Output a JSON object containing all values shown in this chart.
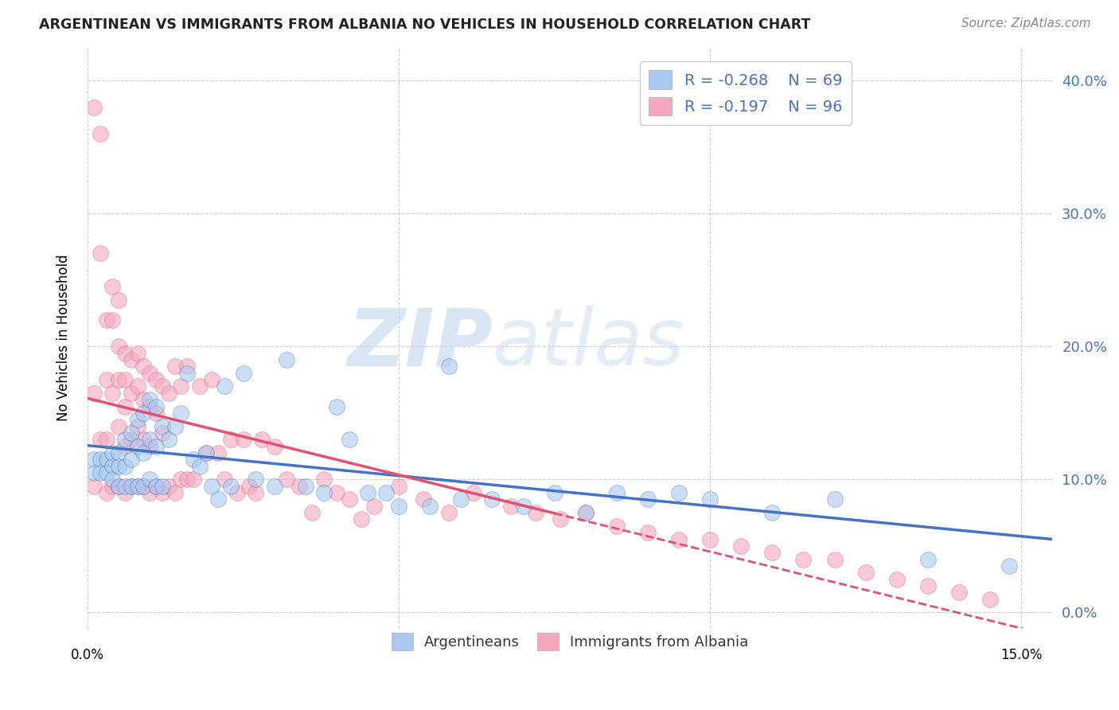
{
  "title": "ARGENTINEAN VS IMMIGRANTS FROM ALBANIA NO VEHICLES IN HOUSEHOLD CORRELATION CHART",
  "source": "Source: ZipAtlas.com",
  "ylabel": "No Vehicles in Household",
  "yticks": [
    0.0,
    0.1,
    0.2,
    0.3,
    0.4
  ],
  "xlim": [
    0.0,
    0.155
  ],
  "ylim": [
    -0.012,
    0.425
  ],
  "legend_r1": "-0.268",
  "legend_n1": "69",
  "legend_r2": "-0.197",
  "legend_n2": "96",
  "color_blue": "#A8C8F0",
  "color_pink": "#F5A8BC",
  "color_trend_blue": "#4472C4",
  "color_trend_pink": "#E05070",
  "watermark": "ZIPatlas",
  "argentineans_x": [
    0.001,
    0.001,
    0.002,
    0.002,
    0.003,
    0.003,
    0.004,
    0.004,
    0.004,
    0.005,
    0.005,
    0.005,
    0.006,
    0.006,
    0.006,
    0.007,
    0.007,
    0.007,
    0.008,
    0.008,
    0.008,
    0.009,
    0.009,
    0.009,
    0.01,
    0.01,
    0.01,
    0.011,
    0.011,
    0.011,
    0.012,
    0.012,
    0.013,
    0.014,
    0.015,
    0.016,
    0.017,
    0.018,
    0.019,
    0.02,
    0.021,
    0.022,
    0.023,
    0.025,
    0.027,
    0.03,
    0.032,
    0.035,
    0.038,
    0.04,
    0.042,
    0.045,
    0.048,
    0.05,
    0.055,
    0.058,
    0.06,
    0.065,
    0.07,
    0.075,
    0.08,
    0.085,
    0.09,
    0.095,
    0.1,
    0.11,
    0.12,
    0.135,
    0.148
  ],
  "argentineans_y": [
    0.115,
    0.105,
    0.115,
    0.105,
    0.115,
    0.105,
    0.12,
    0.11,
    0.1,
    0.12,
    0.11,
    0.095,
    0.13,
    0.11,
    0.095,
    0.135,
    0.115,
    0.095,
    0.145,
    0.125,
    0.095,
    0.15,
    0.12,
    0.095,
    0.16,
    0.13,
    0.1,
    0.155,
    0.125,
    0.095,
    0.14,
    0.095,
    0.13,
    0.14,
    0.15,
    0.18,
    0.115,
    0.11,
    0.12,
    0.095,
    0.085,
    0.17,
    0.095,
    0.18,
    0.1,
    0.095,
    0.19,
    0.095,
    0.09,
    0.155,
    0.13,
    0.09,
    0.09,
    0.08,
    0.08,
    0.185,
    0.085,
    0.085,
    0.08,
    0.09,
    0.075,
    0.09,
    0.085,
    0.09,
    0.085,
    0.075,
    0.085,
    0.04,
    0.035
  ],
  "albania_x": [
    0.001,
    0.001,
    0.001,
    0.002,
    0.002,
    0.002,
    0.003,
    0.003,
    0.003,
    0.003,
    0.004,
    0.004,
    0.004,
    0.004,
    0.005,
    0.005,
    0.005,
    0.005,
    0.005,
    0.006,
    0.006,
    0.006,
    0.006,
    0.006,
    0.007,
    0.007,
    0.007,
    0.007,
    0.008,
    0.008,
    0.008,
    0.008,
    0.009,
    0.009,
    0.009,
    0.009,
    0.01,
    0.01,
    0.01,
    0.01,
    0.011,
    0.011,
    0.011,
    0.012,
    0.012,
    0.012,
    0.013,
    0.013,
    0.014,
    0.014,
    0.015,
    0.015,
    0.016,
    0.016,
    0.017,
    0.018,
    0.019,
    0.02,
    0.021,
    0.022,
    0.023,
    0.024,
    0.025,
    0.026,
    0.027,
    0.028,
    0.03,
    0.032,
    0.034,
    0.036,
    0.038,
    0.04,
    0.042,
    0.044,
    0.046,
    0.05,
    0.054,
    0.058,
    0.062,
    0.068,
    0.072,
    0.076,
    0.08,
    0.085,
    0.09,
    0.095,
    0.1,
    0.105,
    0.11,
    0.115,
    0.12,
    0.125,
    0.13,
    0.135,
    0.14,
    0.145
  ],
  "albania_y": [
    0.38,
    0.165,
    0.095,
    0.36,
    0.27,
    0.13,
    0.22,
    0.175,
    0.13,
    0.09,
    0.245,
    0.22,
    0.165,
    0.095,
    0.235,
    0.2,
    0.175,
    0.14,
    0.095,
    0.195,
    0.175,
    0.155,
    0.125,
    0.09,
    0.19,
    0.165,
    0.13,
    0.095,
    0.195,
    0.17,
    0.14,
    0.095,
    0.185,
    0.16,
    0.13,
    0.095,
    0.18,
    0.155,
    0.125,
    0.09,
    0.175,
    0.15,
    0.095,
    0.17,
    0.135,
    0.09,
    0.165,
    0.095,
    0.185,
    0.09,
    0.17,
    0.1,
    0.185,
    0.1,
    0.1,
    0.17,
    0.12,
    0.175,
    0.12,
    0.1,
    0.13,
    0.09,
    0.13,
    0.095,
    0.09,
    0.13,
    0.125,
    0.1,
    0.095,
    0.075,
    0.1,
    0.09,
    0.085,
    0.07,
    0.08,
    0.095,
    0.085,
    0.075,
    0.09,
    0.08,
    0.075,
    0.07,
    0.075,
    0.065,
    0.06,
    0.055,
    0.055,
    0.05,
    0.045,
    0.04,
    0.04,
    0.03,
    0.025,
    0.02,
    0.015,
    0.01
  ]
}
